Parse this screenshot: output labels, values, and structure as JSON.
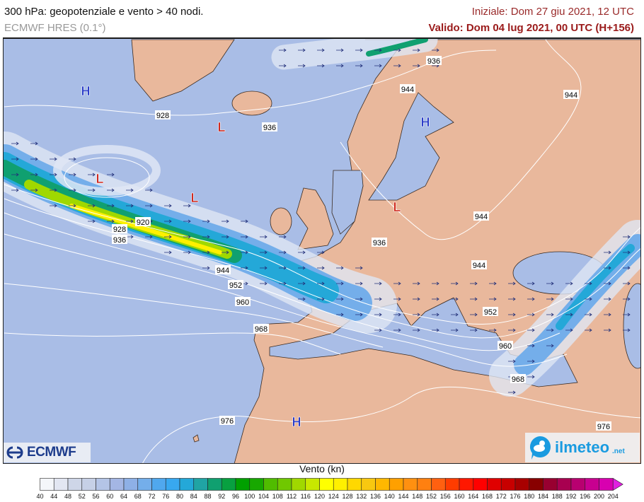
{
  "header": {
    "title": "300 hPa: geopotenziale e vento > 40 nodi.",
    "model": "ECMWF HRES (0.1°)",
    "initial": "Iniziale: Dom 27 giu 2021, 12 UTC",
    "valid": "Valido: Dom 04 lug 2021, 00 UTC (H+156)"
  },
  "map": {
    "colors": {
      "ocean": "#a9bde6",
      "land": "#e9b89c",
      "contour": "#ffffff",
      "high": "#2a3cc8",
      "low": "#d0281e",
      "border": "#1a1a1a"
    },
    "pressure_centers": [
      {
        "type": "H"
      },
      {
        "type": "L"
      },
      {
        "type": "H"
      },
      {
        "type": "L"
      },
      {
        "type": "L"
      },
      {
        "type": "L"
      },
      {
        "type": "H"
      }
    ],
    "contour_labels": [
      "936",
      "944",
      "944",
      "928",
      "936",
      "920",
      "928",
      "936",
      "944",
      "936",
      "944",
      "944",
      "952",
      "960",
      "952",
      "968",
      "960",
      "968",
      "976",
      "976"
    ]
  },
  "logos": {
    "left": "ECMWF",
    "right_main": "ilmeteo",
    "right_suffix": ".net"
  },
  "colorbar": {
    "title": "Vento (kn)",
    "ticks": [
      "40",
      "44",
      "48",
      "52",
      "56",
      "60",
      "64",
      "68",
      "72",
      "76",
      "80",
      "84",
      "88",
      "92",
      "96",
      "100",
      "104",
      "108",
      "112",
      "116",
      "120",
      "124",
      "128",
      "132",
      "136",
      "140",
      "144",
      "148",
      "152",
      "156",
      "160",
      "164",
      "168",
      "172",
      "176",
      "180",
      "184",
      "188",
      "192",
      "196",
      "200",
      "204"
    ],
    "colors": [
      "#f4f6fa",
      "#e2e6f2",
      "#ced6e8",
      "#c6d0e6",
      "#b4c4e6",
      "#a4b6e4",
      "#8eb0e6",
      "#74aeea",
      "#50a8ee",
      "#38a8f0",
      "#24a8d8",
      "#20a4a4",
      "#10a070",
      "#08a040",
      "#00a000",
      "#18a800",
      "#50bc00",
      "#70c800",
      "#a0d800",
      "#c8e800",
      "#ffff00",
      "#fff000",
      "#ffd800",
      "#f8c810",
      "#ffb800",
      "#ffa000",
      "#ff9010",
      "#ff8010",
      "#ff6010",
      "#ff3c00",
      "#ff1800",
      "#ff0000",
      "#e00000",
      "#c80000",
      "#a80000",
      "#880000",
      "#980030",
      "#a80050",
      "#b80070",
      "#c80090",
      "#d800b0"
    ],
    "extend_color": "#e020e0"
  }
}
